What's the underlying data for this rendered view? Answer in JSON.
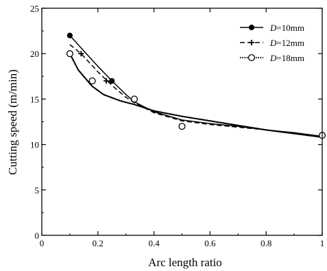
{
  "chart_data": {
    "type": "line",
    "xlabel": "Arc length ratio",
    "ylabel": "Cutting speed (m/min)",
    "xlim": [
      0,
      1
    ],
    "ylim": [
      0,
      25
    ],
    "xticks": [
      0,
      0.2,
      0.4,
      0.6,
      0.8,
      1
    ],
    "xtick_labels": [
      "0",
      "0.2",
      "0.4",
      "0.6",
      "0.8",
      "1"
    ],
    "yticks": [
      0,
      5,
      10,
      15,
      20,
      25
    ],
    "ytick_labels": [
      "0",
      "5",
      "10",
      "15",
      "20",
      "25"
    ],
    "grid": false,
    "legend_position": "top-right",
    "series": [
      {
        "name_prefix": "D",
        "name_suffix": "=10mm",
        "marker": "filled-circle",
        "line_style": "solid",
        "color": "#000000",
        "points": [
          [
            0.1,
            22
          ],
          [
            0.25,
            17
          ],
          [
            0.33,
            15
          ],
          [
            0.5,
            12
          ],
          [
            1.0,
            11
          ]
        ],
        "curve": [
          [
            0.1,
            22.0
          ],
          [
            0.15,
            20.3
          ],
          [
            0.2,
            18.6
          ],
          [
            0.25,
            17.0
          ],
          [
            0.3,
            15.5
          ],
          [
            0.33,
            14.7
          ],
          [
            0.4,
            13.6
          ],
          [
            0.5,
            12.7
          ],
          [
            0.6,
            12.3
          ],
          [
            0.7,
            12.0
          ],
          [
            0.8,
            11.6
          ],
          [
            0.9,
            11.3
          ],
          [
            1.0,
            10.9
          ]
        ]
      },
      {
        "name_prefix": "D",
        "name_suffix": "=12mm",
        "marker": "plus",
        "line_style": "dashed",
        "color": "#000000",
        "points": [
          [
            0.14,
            20
          ],
          [
            0.23,
            17
          ],
          [
            0.33,
            15
          ],
          [
            0.5,
            12
          ],
          [
            1.0,
            11
          ]
        ],
        "curve": [
          [
            0.1,
            21.0
          ],
          [
            0.14,
            20.0
          ],
          [
            0.2,
            18.0
          ],
          [
            0.25,
            16.5
          ],
          [
            0.3,
            15.2
          ],
          [
            0.33,
            14.6
          ],
          [
            0.4,
            13.5
          ],
          [
            0.5,
            12.6
          ],
          [
            0.6,
            12.2
          ],
          [
            0.7,
            11.9
          ],
          [
            0.8,
            11.6
          ],
          [
            0.9,
            11.2
          ],
          [
            1.0,
            10.8
          ]
        ]
      },
      {
        "name_prefix": "D",
        "name_suffix": "=18mm",
        "marker": "open-circle",
        "line_style": "dotted",
        "color": "#000000",
        "points": [
          [
            0.1,
            20
          ],
          [
            0.18,
            17
          ],
          [
            0.33,
            15
          ],
          [
            0.5,
            12
          ],
          [
            1.0,
            11
          ]
        ],
        "curve": [
          [
            0.1,
            20.0
          ],
          [
            0.13,
            18.2
          ],
          [
            0.18,
            16.4
          ],
          [
            0.22,
            15.5
          ],
          [
            0.28,
            14.8
          ],
          [
            0.33,
            14.4
          ],
          [
            0.4,
            13.7
          ],
          [
            0.5,
            13.1
          ],
          [
            0.6,
            12.6
          ],
          [
            0.7,
            12.1
          ],
          [
            0.8,
            11.6
          ],
          [
            0.9,
            11.2
          ],
          [
            1.0,
            10.8
          ]
        ]
      }
    ]
  }
}
